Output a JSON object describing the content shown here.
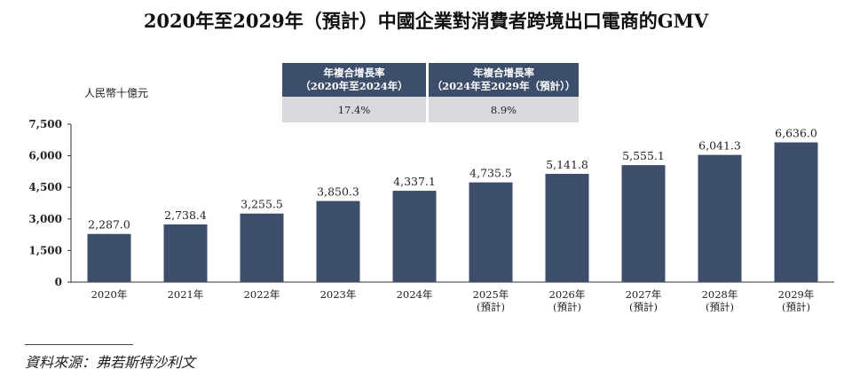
{
  "title": "2020年至2029年（預計）中國企業對消費者跨境出口電商的GMV",
  "unit_label": "人民幣十億元",
  "cagr": {
    "left_header_line1": "年複合增長率",
    "left_header_line2": "（2020年至2024年）",
    "right_header_line1": "年複合增長率",
    "right_header_line2": "（2024年至2029年（預計））",
    "left_value": "17.4%",
    "right_value": "8.9%"
  },
  "source": "資料來源：弗若斯特沙利文",
  "colors": {
    "bar": "#3d4e6b",
    "table_header": "#3d4e6b",
    "table_value_bg": "#d7d9dd"
  },
  "chart_data": {
    "type": "bar",
    "categories": [
      [
        "2020年"
      ],
      [
        "2021年"
      ],
      [
        "2022年"
      ],
      [
        "2023年"
      ],
      [
        "2024年"
      ],
      [
        "2025年",
        "(預計)"
      ],
      [
        "2026年",
        "(預計)"
      ],
      [
        "2027年",
        "(預計)"
      ],
      [
        "2028年",
        "(預計)"
      ],
      [
        "2029年",
        "(預計)"
      ]
    ],
    "values": [
      2287.0,
      2738.4,
      3255.5,
      3850.3,
      4337.1,
      4735.5,
      5141.8,
      5555.1,
      6041.3,
      6636.0
    ],
    "value_labels": [
      "2,287.0",
      "2,738.4",
      "3,255.5",
      "3,850.3",
      "4,337.1",
      "4,735.5",
      "5,141.8",
      "5,555.1",
      "6,041.3",
      "6,636.0"
    ],
    "ylim": [
      0,
      7500
    ],
    "yticks": [
      0,
      1500,
      3000,
      4500,
      6000,
      7500
    ],
    "ytick_labels": [
      "0",
      "1,500",
      "3,000",
      "4,500",
      "6,000",
      "7,500"
    ],
    "grid": false,
    "legend": "none"
  }
}
